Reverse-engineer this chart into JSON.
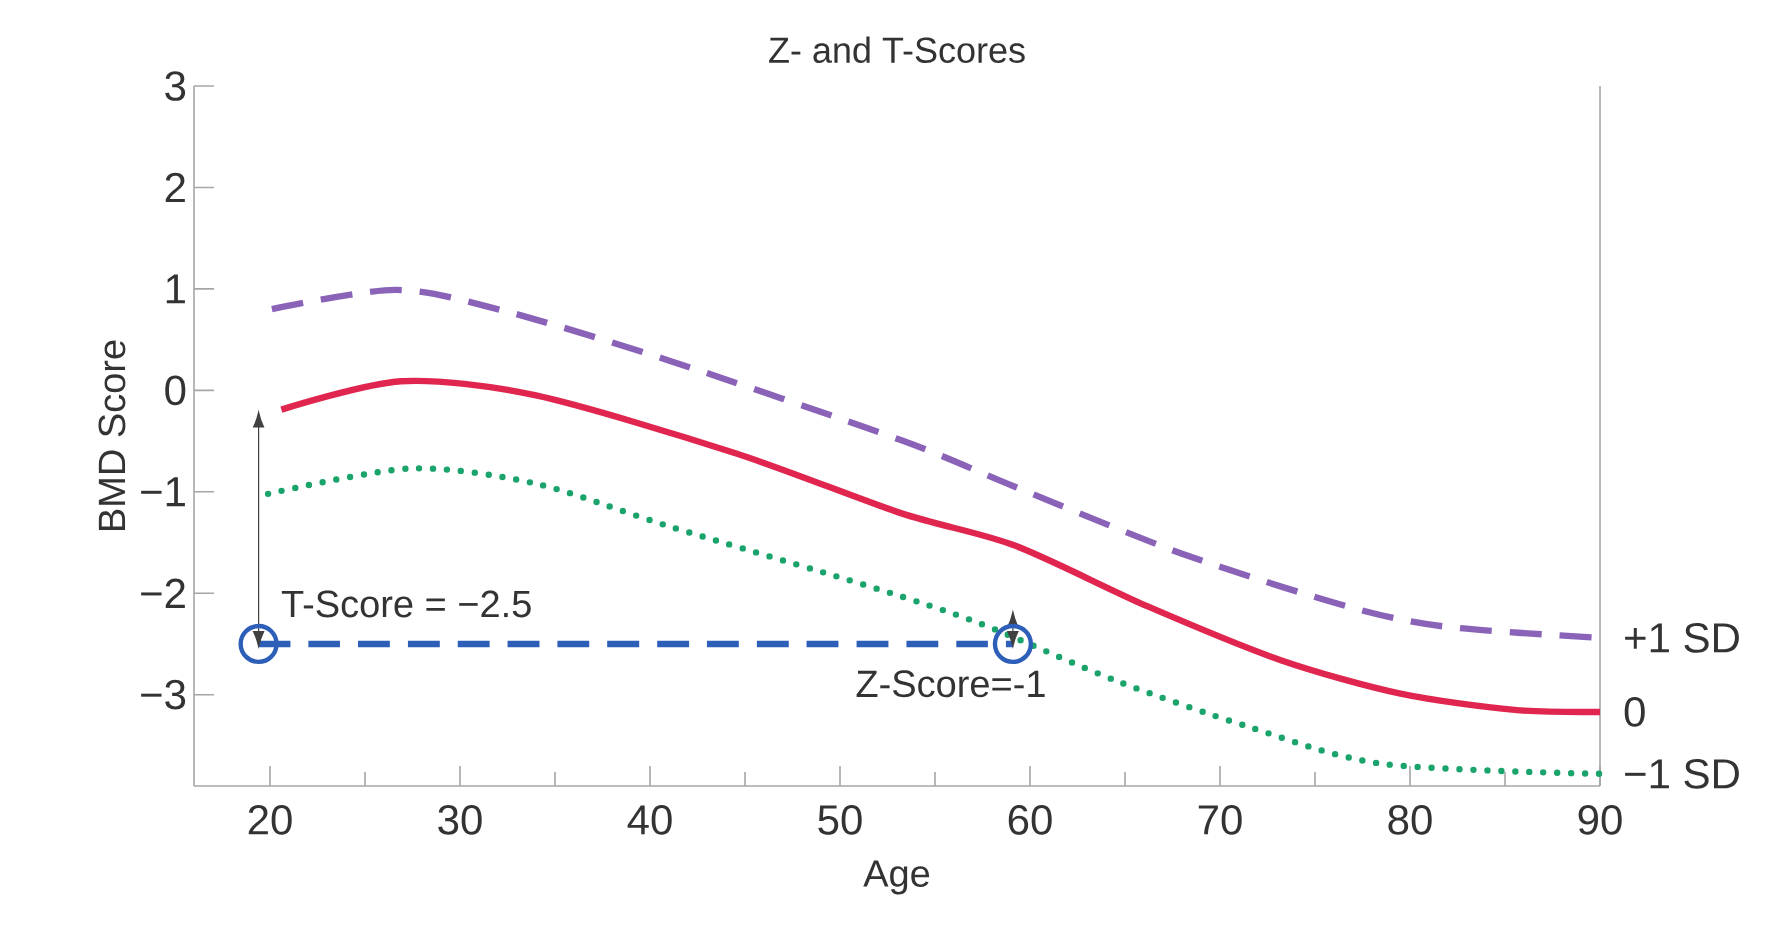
{
  "chart_data": {
    "type": "line",
    "title": "Z- and T-Scores",
    "xlabel": "Age",
    "ylabel": "BMD Score",
    "xlim": [
      16,
      90
    ],
    "ylim": [
      -3.9,
      3
    ],
    "xticks": [
      20,
      30,
      40,
      50,
      60,
      70,
      80,
      90
    ],
    "yticks": [
      {
        "value": -3,
        "label": "−3"
      },
      {
        "value": -2,
        "label": "−2"
      },
      {
        "value": -1,
        "label": "−1"
      },
      0,
      1,
      2,
      3
    ],
    "grid": false,
    "legend": false,
    "series": [
      {
        "name": "+1 SD",
        "color": "#8a63b8",
        "line_style": "dashed",
        "x": [
          20.1,
          26.6,
          32.2,
          40.9,
          53.2,
          59.2,
          68,
          76.7,
          81.9,
          90
        ],
        "values": [
          0.8,
          0.99,
          0.79,
          0.3,
          -0.49,
          -0.95,
          -1.61,
          -2.13,
          -2.33,
          -2.44
        ]
      },
      {
        "name": "0",
        "color": "#e0264f",
        "line_style": "solid",
        "x": [
          20.6,
          26.9,
          34,
          44.5,
          53.2,
          59.2,
          66.2,
          73.2,
          79.5,
          85.5,
          90
        ],
        "values": [
          -0.19,
          0.09,
          -0.05,
          -0.62,
          -1.21,
          -1.53,
          -2.13,
          -2.66,
          -2.99,
          -3.15,
          -3.17
        ]
      },
      {
        "name": "−1 SD",
        "color": "#1aa36a",
        "line_style": "dotted",
        "x": [
          19.9,
          27.4,
          34,
          41,
          51.5,
          57.4,
          64.5,
          71.4,
          78.5,
          90
        ],
        "values": [
          -1.02,
          -0.77,
          -0.92,
          -1.34,
          -1.93,
          -2.3,
          -2.86,
          -3.31,
          -3.68,
          -3.78
        ]
      },
      {
        "color": "#2e5fb8",
        "line_style": "dashed",
        "marker": "circle",
        "x": [
          19.4,
          59.1
        ],
        "values": [
          -2.5,
          -2.5
        ]
      }
    ],
    "annotations": [
      {
        "text": "T-Score = −2.5",
        "x": 19.4,
        "y": -2.5
      },
      {
        "text": "Z-Score=-1",
        "x": 59.1,
        "y": -2.5
      }
    ]
  }
}
